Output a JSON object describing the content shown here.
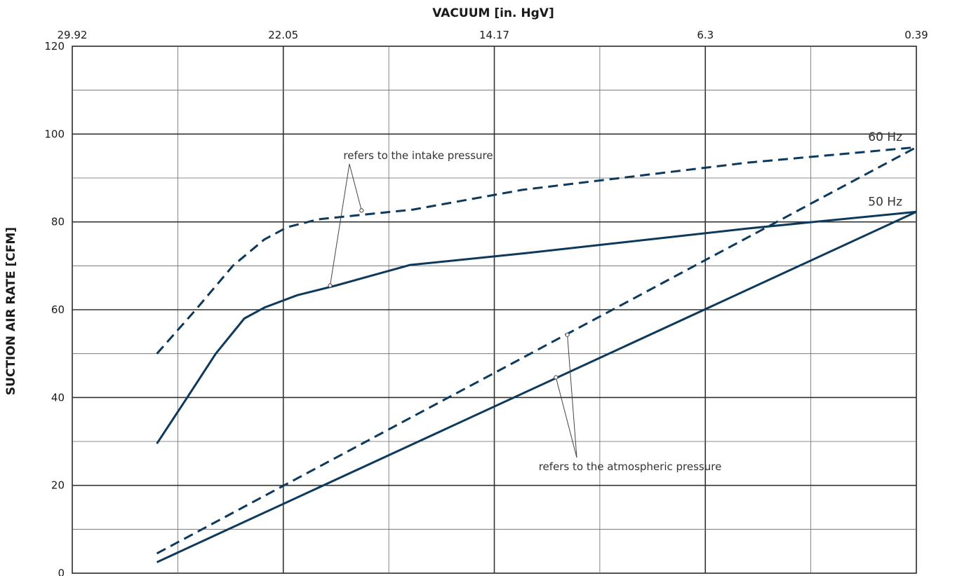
{
  "chart_data": {
    "type": "line",
    "title": "",
    "xlabel": "VACUUM  [in. HgV]",
    "ylabel": "SUCTION AIR RATE  [CFM]",
    "x_axis_position": "top",
    "x_reversed": true,
    "xlim": [
      29.92,
      0.39
    ],
    "ylim": [
      0,
      120
    ],
    "x_ticks": [
      "29.92",
      "22.05",
      "14.17",
      "6.3",
      "0.39"
    ],
    "y_ticks": [
      "0",
      "20",
      "40",
      "60",
      "80",
      "100",
      "120"
    ],
    "grid": true,
    "series": [
      {
        "name": "60 Hz",
        "pressure_reference": "intake",
        "style": "dashed",
        "color": "#0d3a5c",
        "points": [
          [
            26.96,
            50
          ],
          [
            25.6,
            60
          ],
          [
            24.3,
            70
          ],
          [
            23.2,
            76
          ],
          [
            22.4,
            78.8
          ],
          [
            21.3,
            80.6
          ],
          [
            18.0,
            82.8
          ],
          [
            14.17,
            87.3
          ],
          [
            6.3,
            93.5
          ],
          [
            0.39,
            97
          ]
        ]
      },
      {
        "name": "50 Hz",
        "pressure_reference": "intake",
        "style": "solid",
        "color": "#0d3a5c",
        "points": [
          [
            26.96,
            29.5
          ],
          [
            25.9,
            40
          ],
          [
            24.9,
            50
          ],
          [
            23.9,
            58
          ],
          [
            23.2,
            60.5
          ],
          [
            22.05,
            63.3
          ],
          [
            20.7,
            65.5
          ],
          [
            18.1,
            70.2
          ],
          [
            14.17,
            72.8
          ],
          [
            6.3,
            78.5
          ],
          [
            0.39,
            82.3
          ]
        ]
      },
      {
        "name": "60 Hz",
        "pressure_reference": "atmospheric",
        "style": "dashed",
        "color": "#0d3a5c",
        "points": [
          [
            26.96,
            4.5
          ],
          [
            0.39,
            97
          ]
        ]
      },
      {
        "name": "50 Hz",
        "pressure_reference": "atmospheric",
        "style": "solid",
        "color": "#0d3a5c",
        "points": [
          [
            26.96,
            2.5
          ],
          [
            0.39,
            82.3
          ]
        ]
      }
    ],
    "series_labels": [
      "60 Hz",
      "50 Hz"
    ],
    "annotations": [
      {
        "text": "refers to the intake pressure",
        "pointers": [
          [
            19.8,
            82.6
          ],
          [
            20.9,
            65.5
          ]
        ]
      },
      {
        "text": "refers to the atmospheric pressure",
        "pointers": [
          [
            12.6,
            54.3
          ],
          [
            13.0,
            44.6
          ]
        ]
      }
    ]
  }
}
